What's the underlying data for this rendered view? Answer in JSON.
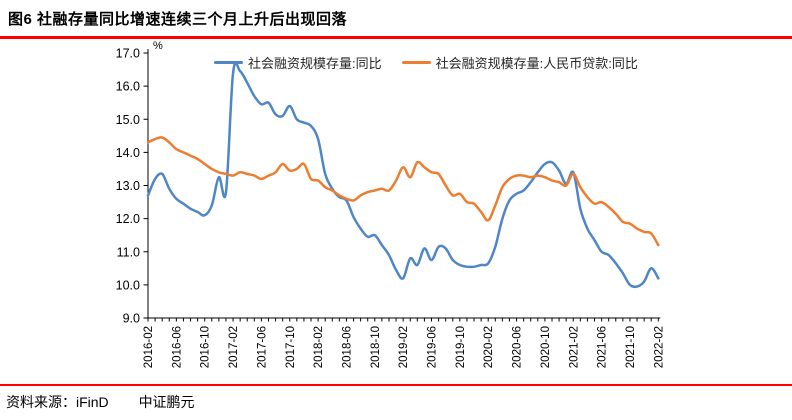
{
  "header": {
    "title": "图6  社融存量同比增速连续三个月上升后出现回落"
  },
  "footer": {
    "source_label": "资料来源：iFinD",
    "company": "中证鹏元"
  },
  "colors": {
    "accent_red": "#ff0000",
    "axis_black": "#000000",
    "series_tsf_blue": "#4f86c6",
    "series_loan_orange": "#ed7d31"
  },
  "chart_data": {
    "type": "line",
    "title": "",
    "unit_label": "%",
    "grid": false,
    "legend_position": "top",
    "ylim": [
      9.0,
      17.0
    ],
    "ytick_step": 1.0,
    "ytick_labels": [
      "17.0",
      "16.0",
      "15.0",
      "14.0",
      "13.0",
      "12.0",
      "11.0",
      "10.0",
      "9.0"
    ],
    "x_start": "2016-02",
    "x_end": "2022-02",
    "x_freq": "monthly",
    "x_count": 73,
    "xtick_every": 4,
    "xtick_labels": [
      "2016-02",
      "2016-06",
      "2016-10",
      "2017-02",
      "2017-06",
      "2017-10",
      "2018-02",
      "2018-06",
      "2018-10",
      "2019-02",
      "2019-06",
      "2019-10",
      "2020-02",
      "2020-06",
      "2020-10",
      "2021-02",
      "2021-06",
      "2021-10",
      "2022-02"
    ],
    "series": [
      {
        "name": "社会融资规模存量:同比",
        "color": "#4f86c6",
        "values": [
          12.7,
          13.2,
          13.35,
          12.9,
          12.6,
          12.45,
          12.3,
          12.2,
          12.1,
          12.4,
          13.25,
          12.8,
          16.4,
          16.45,
          16.1,
          15.7,
          15.45,
          15.5,
          15.15,
          15.1,
          15.4,
          15.0,
          14.9,
          14.8,
          14.4,
          13.35,
          12.9,
          12.65,
          12.55,
          12.05,
          11.7,
          11.45,
          11.5,
          11.2,
          10.9,
          10.45,
          10.2,
          10.8,
          10.6,
          11.1,
          10.75,
          11.15,
          11.1,
          10.75,
          10.6,
          10.55,
          10.55,
          10.6,
          10.65,
          11.15,
          12.0,
          12.55,
          12.75,
          12.85,
          13.1,
          13.4,
          13.65,
          13.7,
          13.45,
          13.05,
          13.4,
          12.3,
          11.7,
          11.35,
          11.0,
          10.9,
          10.65,
          10.35,
          10.0,
          9.95,
          10.1,
          10.5,
          10.2
        ]
      },
      {
        "name": "社会融资规模存量:人民币贷款:同比",
        "color": "#ed7d31",
        "values": [
          14.3,
          14.4,
          14.45,
          14.3,
          14.1,
          14.0,
          13.9,
          13.8,
          13.65,
          13.5,
          13.4,
          13.35,
          13.3,
          13.4,
          13.35,
          13.3,
          13.2,
          13.3,
          13.4,
          13.65,
          13.45,
          13.5,
          13.65,
          13.2,
          13.15,
          12.95,
          12.85,
          12.7,
          12.6,
          12.55,
          12.7,
          12.8,
          12.85,
          12.9,
          12.85,
          13.15,
          13.55,
          13.25,
          13.7,
          13.55,
          13.4,
          13.35,
          13.0,
          12.7,
          12.75,
          12.5,
          12.45,
          12.2,
          11.95,
          12.4,
          12.95,
          13.2,
          13.3,
          13.3,
          13.25,
          13.3,
          13.25,
          13.15,
          13.1,
          13.0,
          13.35,
          12.95,
          12.65,
          12.45,
          12.5,
          12.35,
          12.15,
          11.9,
          11.85,
          11.7,
          11.6,
          11.55,
          11.2
        ]
      }
    ]
  }
}
